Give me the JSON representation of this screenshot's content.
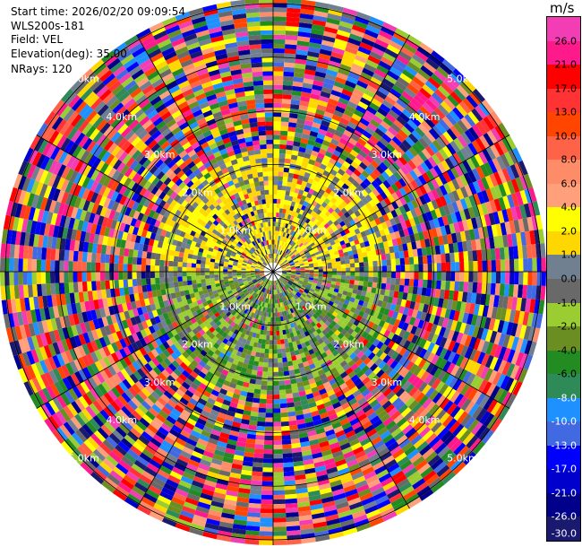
{
  "header": {
    "start_time": "Start time: 2026/02/20 09:09:54",
    "instrument": "WLS200s-181",
    "field": "Field: VEL",
    "elevation": "Elevation(deg): 35.00",
    "nrays": "NRays: 120"
  },
  "colorbar": {
    "unit": "m/s",
    "ticks": [
      "26.0",
      "21.0",
      "17.0",
      "13.0",
      "10.0",
      "8.0",
      "6.0",
      "4.0",
      "2.0",
      "1.0",
      "0.0",
      "-1.0",
      "-2.0",
      "-4.0",
      "-6.0",
      "-8.0",
      "-10.0",
      "-13.0",
      "-17.0",
      "-21.0",
      "-26.0",
      "-30.0"
    ],
    "colors": [
      "#f23db5",
      "#ff1a8c",
      "#ff0000",
      "#ff3333",
      "#ff4500",
      "#ff6347",
      "#ff8c69",
      "#ffa07a",
      "#ffff00",
      "#ffd700",
      "#708090",
      "#696969",
      "#9acd32",
      "#6b8e23",
      "#228b22",
      "#2e8b57",
      "#1e90ff",
      "#4169e1",
      "#0000ff",
      "#0000cd",
      "#00008b",
      "#191970"
    ]
  },
  "chart_data": {
    "type": "heatmap",
    "subtype": "polar-ppi",
    "field": "VEL",
    "units": "m/s",
    "elevation_deg": 35.0,
    "n_rays": 120,
    "range_rings_km": [
      1,
      2,
      3,
      4,
      5
    ],
    "range_labels": [
      "1.0km",
      "2.0km",
      "3.0km",
      "4.0km",
      "5.0km"
    ],
    "max_range_km": 5.1,
    "value_range": [
      -30.0,
      26.0
    ],
    "pattern": "Near-range region (< ~2.5 km) dominated by slow velocities: 0 to 1 m/s (gray) and 1 to 4 m/s (yellow) to the north, -1 to -4 m/s (green) to the south; beyond ~2.5 km the field is noisy across the full color range.",
    "grid": true
  }
}
